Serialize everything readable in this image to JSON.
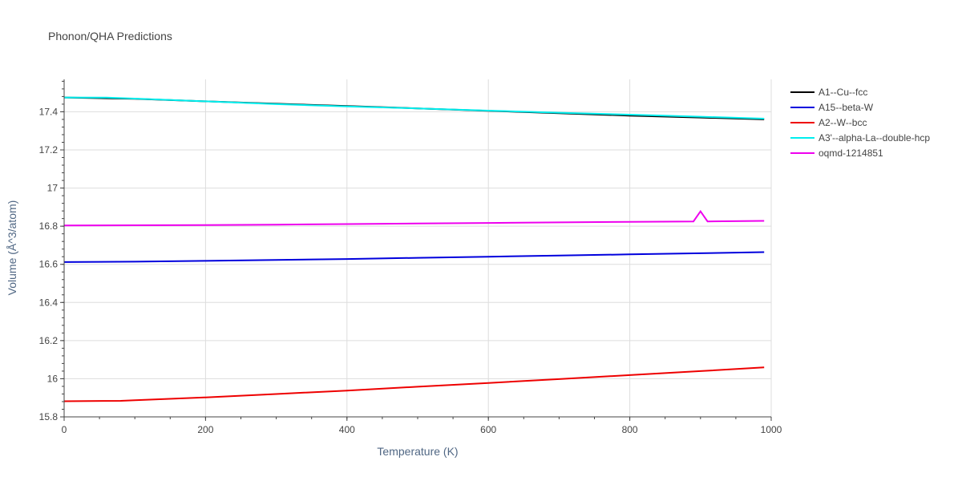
{
  "chart_data": {
    "type": "line",
    "title": "Phonon/QHA Predictions",
    "xlabel": "Temperature (K)",
    "ylabel": "Volume (Å^3/atom)",
    "xlim": [
      0,
      1000
    ],
    "ylim": [
      15.8,
      17.57
    ],
    "x_ticks": [
      0,
      200,
      400,
      600,
      800,
      1000
    ],
    "y_ticks": [
      15.8,
      16,
      16.2,
      16.4,
      16.6,
      16.8,
      17,
      17.2,
      17.4
    ],
    "grid": true,
    "legend_position": "top-right",
    "series": [
      {
        "name": "A1--Cu--fcc",
        "color": "#000000",
        "x": [
          0,
          100,
          200,
          300,
          400,
          500,
          600,
          700,
          800,
          900,
          990
        ],
        "y": [
          17.475,
          17.468,
          17.455,
          17.442,
          17.43,
          17.418,
          17.405,
          17.392,
          17.38,
          17.37,
          17.36
        ]
      },
      {
        "name": "A15--beta-W",
        "color": "#0000dd",
        "x": [
          0,
          100,
          200,
          300,
          400,
          500,
          600,
          700,
          800,
          900,
          990
        ],
        "y": [
          16.612,
          16.614,
          16.618,
          16.623,
          16.628,
          16.634,
          16.64,
          16.646,
          16.652,
          16.658,
          16.664
        ]
      },
      {
        "name": "A2--W--bcc",
        "color": "#ee0000",
        "x": [
          0,
          80,
          100,
          200,
          300,
          400,
          500,
          600,
          700,
          800,
          900,
          990
        ],
        "y": [
          15.882,
          15.884,
          15.887,
          15.902,
          15.92,
          15.938,
          15.958,
          15.978,
          15.998,
          16.019,
          16.04,
          16.06
        ]
      },
      {
        "name": "A3'--alpha-La--double-hcp",
        "color": "#00eeee",
        "x": [
          0,
          60,
          100,
          200,
          300,
          400,
          500,
          600,
          700,
          800,
          900,
          990
        ],
        "y": [
          17.475,
          17.474,
          17.469,
          17.455,
          17.44,
          17.428,
          17.418,
          17.406,
          17.395,
          17.385,
          17.374,
          17.364
        ]
      },
      {
        "name": "oqmd-1214851",
        "color": "#ee00ee",
        "x": [
          0,
          100,
          200,
          300,
          400,
          500,
          600,
          700,
          800,
          890,
          900,
          910,
          990
        ],
        "y": [
          16.804,
          16.805,
          16.806,
          16.808,
          16.811,
          16.814,
          16.817,
          16.82,
          16.823,
          16.825,
          16.878,
          16.825,
          16.828
        ]
      }
    ]
  }
}
